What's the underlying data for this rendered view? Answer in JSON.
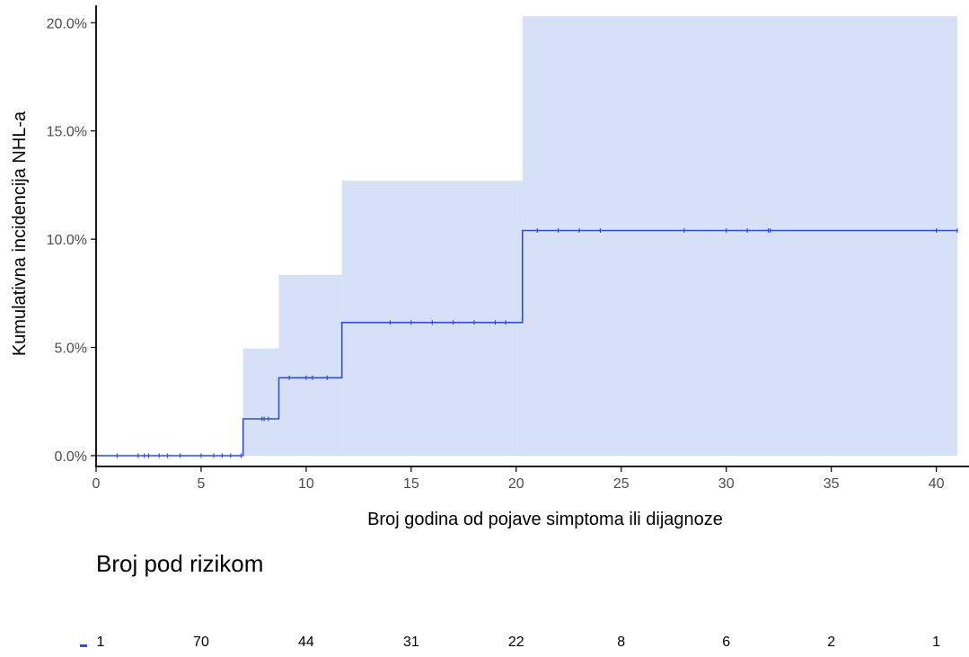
{
  "chart_data": {
    "type": "line",
    "title": "",
    "xlabel": "Broj godina od pojave simptoma ili dijagnoze",
    "ylabel": "Kumulativna incidencija NHL-a",
    "xlim": [
      0,
      41
    ],
    "ylim": [
      -0.5,
      20.8
    ],
    "x_ticks": [
      0,
      5,
      10,
      15,
      20,
      25,
      30,
      35,
      40
    ],
    "x_tick_labels": [
      "0",
      "5",
      "10",
      "15",
      "20",
      "25",
      "30",
      "35",
      "40"
    ],
    "y_ticks": [
      0,
      5,
      10,
      15,
      20
    ],
    "y_tick_labels": [
      "0.0%",
      "5.0%",
      "10.0%",
      "15.0%",
      "20.0%"
    ],
    "grid": false,
    "colors": {
      "line": "#2e4fd6",
      "band": "#d6e1f8",
      "axis": "#000000"
    },
    "series": [
      {
        "step_x": [
          0,
          7,
          7,
          8.7,
          8.7,
          11.7,
          11.7,
          20.3,
          20.3,
          41
        ],
        "step_y": [
          0,
          0,
          1.7,
          1.7,
          3.6,
          3.6,
          6.15,
          6.15,
          10.4,
          10.4
        ],
        "ci_intervals": [
          {
            "x0": 0,
            "x1": 7,
            "lower": 0,
            "upper": 0
          },
          {
            "x0": 7,
            "x1": 8.7,
            "lower": 0,
            "upper": 4.95
          },
          {
            "x0": 8.7,
            "x1": 11.7,
            "lower": 0,
            "upper": 8.35
          },
          {
            "x0": 11.7,
            "x1": 20.3,
            "lower": 0,
            "upper": 12.7
          },
          {
            "x0": 20.3,
            "x1": 41,
            "lower": 0,
            "upper": 20.3
          }
        ],
        "censor_x": [
          1,
          2,
          2.3,
          2.5,
          3,
          3.4,
          4,
          5,
          5.6,
          6,
          6.4,
          6.9,
          7.9,
          8,
          8.2,
          9.2,
          10,
          10.3,
          11,
          14,
          15,
          16,
          17,
          18,
          19,
          19.5,
          21,
          22,
          23,
          24,
          28,
          30,
          31,
          32,
          32.1,
          40,
          41
        ]
      }
    ]
  },
  "risk_table": {
    "title": "Broj pod rizikom",
    "counts": [
      "1",
      "70",
      "44",
      "31",
      "22",
      "8",
      "6",
      "2",
      "1"
    ]
  }
}
